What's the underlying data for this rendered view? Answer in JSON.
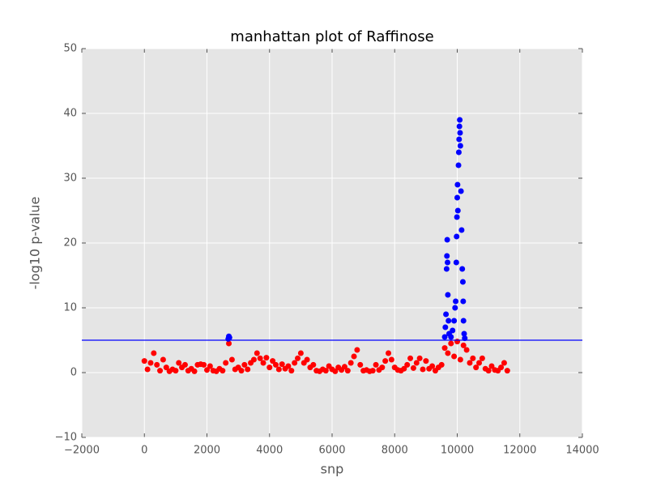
{
  "chart_data": {
    "type": "scatter",
    "title": "manhattan plot of Raffinose",
    "x_label": "snp",
    "y_label": "-log10 p-value",
    "xlim": [
      -2000,
      14000
    ],
    "xticks": [
      {
        "value": -2000,
        "label": "−2000"
      },
      0,
      2000,
      4000,
      6000,
      8000,
      10000,
      12000,
      14000
    ],
    "ylim": [
      -10,
      50
    ],
    "yticks": [
      {
        "value": -10,
        "label": "−10"
      },
      0,
      10,
      20,
      30,
      40,
      50
    ],
    "grid": true,
    "hline": {
      "value": 5,
      "color": "#0000ff"
    },
    "series": [
      {
        "color": "#ff0000",
        "x": [
          0,
          100,
          200,
          300,
          400,
          500,
          600,
          700,
          800,
          900,
          1000,
          1100,
          1200,
          1300,
          1400,
          1500,
          1600,
          1700,
          1800,
          1900,
          2000,
          2100,
          2200,
          2300,
          2400,
          2500,
          2600,
          2700,
          2800,
          2900,
          3000,
          3100,
          3200,
          3300,
          3400,
          3500,
          3600,
          3700,
          3800,
          3900,
          4000,
          4100,
          4200,
          4300,
          4400,
          4500,
          4600,
          4700,
          4800,
          4900,
          5000,
          5100,
          5200,
          5300,
          5400,
          5500,
          5600,
          5700,
          5800,
          5900,
          6000,
          6100,
          6200,
          6300,
          6400,
          6500,
          6600,
          6700,
          6800,
          6900,
          7000,
          7100,
          7200,
          7300,
          7400,
          7500,
          7600,
          7700,
          7800,
          7900,
          8000,
          8100,
          8200,
          8300,
          8400,
          8500,
          8600,
          8700,
          8800,
          8900,
          9000,
          9100,
          9200,
          9300,
          9400,
          9500,
          9600,
          9700,
          9800,
          9900,
          10000,
          10100,
          10200,
          10300,
          10400,
          10500,
          10600,
          10700,
          10800,
          10900,
          11000,
          11100,
          11200,
          11300,
          11400,
          11500,
          11600
        ],
        "values": [
          1.8,
          0.5,
          1.5,
          3,
          1.2,
          0.3,
          2,
          0.8,
          0.2,
          0.5,
          0.3,
          1.5,
          0.8,
          1.2,
          0.3,
          0.6,
          0.2,
          1.2,
          1.3,
          1.2,
          0.4,
          1.0,
          0.3,
          0.2,
          0.6,
          0.3,
          1.5,
          4.5,
          2,
          0.5,
          0.8,
          0.3,
          1.2,
          0.5,
          1.5,
          2,
          3,
          2.2,
          1.5,
          2.3,
          0.8,
          1.8,
          1.2,
          0.5,
          1.3,
          0.6,
          1.0,
          0.3,
          1.5,
          2.2,
          3,
          1.5,
          2,
          0.8,
          1.2,
          0.3,
          0.2,
          0.5,
          0.3,
          1.0,
          0.5,
          0.2,
          0.8,
          0.4,
          0.9,
          0.3,
          1.5,
          2.5,
          3.5,
          1.2,
          0.3,
          0.4,
          0.2,
          0.3,
          1.2,
          0.4,
          0.8,
          1.8,
          3,
          2,
          0.8,
          0.4,
          0.3,
          0.6,
          1.2,
          2.2,
          0.7,
          1.5,
          2.2,
          0.5,
          1.8,
          0.6,
          1.0,
          0.3,
          0.8,
          1.2,
          3.8,
          3,
          4.5,
          2.5,
          4.8,
          2,
          4.2,
          3.5,
          1.5,
          2.2,
          0.8,
          1.5,
          2.2,
          0.6,
          0.3,
          1.0,
          0.4,
          0.3,
          0.8,
          1.5,
          0.3
        ]
      },
      {
        "color": "#0000ff",
        "x": [
          2680,
          2700,
          2720,
          9600,
          9620,
          9640,
          9660,
          9670,
          9680,
          9690,
          9700,
          9720,
          9740,
          9800,
          9850,
          9900,
          9930,
          9950,
          9970,
          9980,
          9990,
          10000,
          10010,
          10020,
          10040,
          10050,
          10060,
          10070,
          10080,
          10090,
          10100,
          10120,
          10140,
          10160,
          10180,
          10190,
          10200,
          10220,
          10240
        ],
        "values": [
          5.2,
          5.6,
          5.4,
          5.5,
          7,
          9,
          16,
          18,
          20.5,
          17,
          12,
          8,
          6,
          5.5,
          6.5,
          8,
          10,
          11,
          17,
          21,
          24,
          27,
          29,
          25,
          32,
          34,
          36,
          38,
          39,
          37,
          35,
          28,
          22,
          16,
          14,
          11,
          8,
          6,
          5.3
        ]
      }
    ]
  }
}
